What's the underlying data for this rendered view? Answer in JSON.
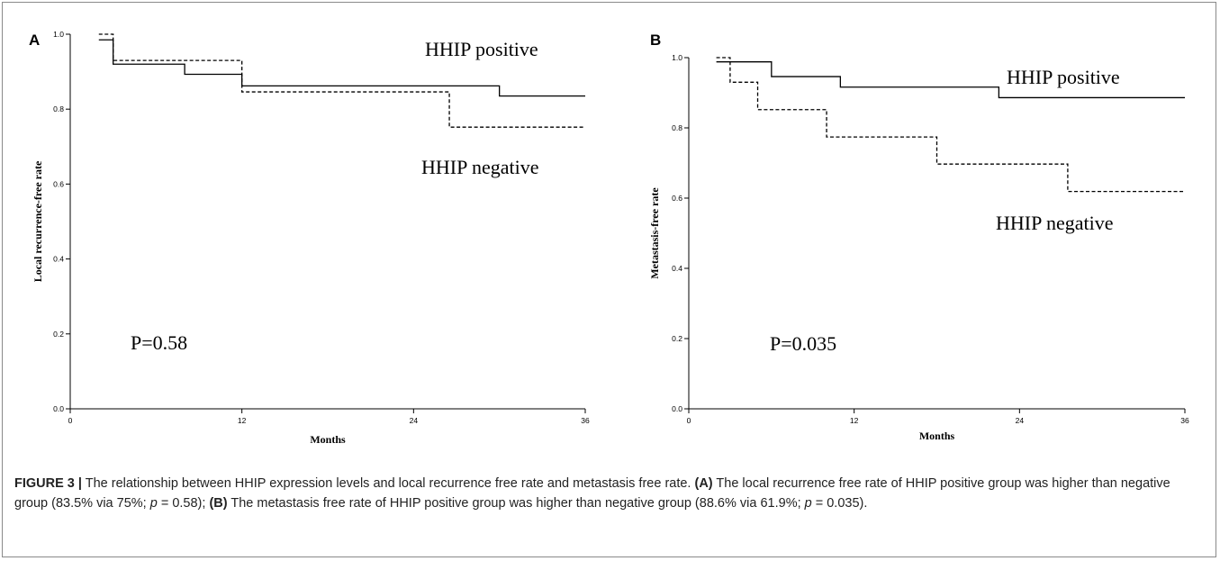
{
  "chart_data": [
    {
      "type": "line",
      "panel_letter": "A",
      "xlabel": "Months",
      "ylabel": "Local recurrence-free rate",
      "xlim": [
        0,
        36
      ],
      "ylim": [
        0,
        1.0
      ],
      "xticks": [
        "0",
        "12",
        "24",
        "36"
      ],
      "yticks": [
        "0.0",
        "0.2",
        "0.4",
        "0.6",
        "0.8",
        "1.0"
      ],
      "annotation": "P=0.58",
      "series": [
        {
          "name": "HHIP positive",
          "style": "solid",
          "x": [
            2,
            3,
            8,
            12,
            30,
            36
          ],
          "y": [
            0.985,
            0.92,
            0.893,
            0.862,
            0.835,
            0.835
          ]
        },
        {
          "name": "HHIP negative",
          "style": "dashed",
          "x": [
            2,
            3,
            12,
            26.5,
            36
          ],
          "y": [
            1.0,
            0.93,
            0.846,
            0.752,
            0.752
          ]
        }
      ]
    },
    {
      "type": "line",
      "panel_letter": "B",
      "xlabel": "Months",
      "ylabel": "Metastasis-free rate",
      "xlim": [
        0,
        36
      ],
      "ylim": [
        0,
        1.0
      ],
      "xticks": [
        "0",
        "12",
        "24",
        "36"
      ],
      "yticks": [
        "0.0",
        "0.2",
        "0.4",
        "0.6",
        "0.8",
        "1.0"
      ],
      "annotation": "P=0.035",
      "series": [
        {
          "name": "HHIP positive",
          "style": "solid",
          "x": [
            2,
            6,
            11,
            22.5,
            36
          ],
          "y": [
            0.988,
            0.946,
            0.916,
            0.886,
            0.886
          ]
        },
        {
          "name": "HHIP negative",
          "style": "dashed",
          "x": [
            2,
            3,
            5,
            10,
            18,
            27.5,
            36
          ],
          "y": [
            1.0,
            0.93,
            0.852,
            0.774,
            0.697,
            0.619,
            0.619
          ]
        }
      ]
    }
  ],
  "caption": {
    "label": "FIGURE 3 |",
    "intro": " The relationship between HHIP expression levels and local recurrence free rate and metastasis free rate. ",
    "a_label": "(A)",
    "a_text": " The local recurrence free rate of HHIP positive group was higher than negative group (83.5% via 75%; ",
    "a_p": "p",
    "a_val": " = 0.58); ",
    "b_label": "(B)",
    "b_text": " The metastasis free rate of HHIP positive group was higher than negative group (88.6% via 61.9%; ",
    "b_p": "p",
    "b_val": " = 0.035)."
  }
}
